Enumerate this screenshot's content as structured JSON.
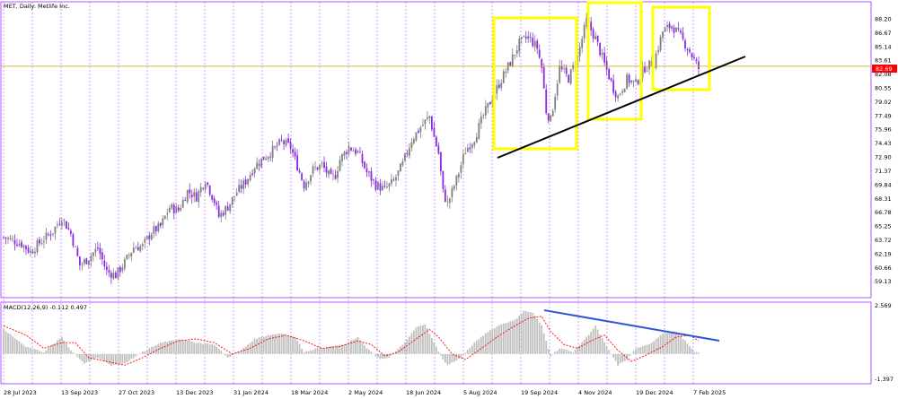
{
  "chart_data": {
    "type": "candlestick",
    "title": "MET, Daily:  Metlife Inc.",
    "price_axis": {
      "ylim": [
        58.4,
        88.9
      ],
      "tick_labels": [
        "88.20",
        "86.67",
        "85.14",
        "83.61",
        "82.08",
        "80.55",
        "79.02",
        "77.49",
        "75.96",
        "74.43",
        "72.90",
        "71.37",
        "69.84",
        "68.31",
        "66.78",
        "65.25",
        "63.72",
        "62.19",
        "60.66",
        "59.13"
      ]
    },
    "current_price": {
      "label": "82.69",
      "value": 82.69,
      "color": "#ff0000"
    },
    "horizontal_line": {
      "value": 82.95,
      "color": "#c8a400"
    },
    "date_labels": [
      "28 Jul 2023",
      "13 Sep 2023",
      "27 Oct 2023",
      "13 Dec 2023",
      "31 Jan 2024",
      "18 Mar 2024",
      "2 May 2024",
      "18 Jun 2024",
      "5 Aug 2024",
      "19 Sep 2024",
      "4 Nov 2024",
      "19 Dec 2024",
      "7 Feb 2025"
    ],
    "price_series": {
      "bull_color": "#7f7f7f",
      "bear_color": "#8a2be2",
      "anchors": [
        [
          0,
          64.0
        ],
        [
          8,
          63.3
        ],
        [
          12,
          62.4
        ],
        [
          16,
          63.4
        ],
        [
          22,
          64.7
        ],
        [
          26,
          66.2
        ],
        [
          30,
          64.4
        ],
        [
          34,
          60.9
        ],
        [
          37,
          61.5
        ],
        [
          42,
          62.8
        ],
        [
          46,
          60.2
        ],
        [
          50,
          59.8
        ],
        [
          54,
          61.2
        ],
        [
          58,
          62.9
        ],
        [
          62,
          63.0
        ],
        [
          66,
          64.6
        ],
        [
          70,
          65.2
        ],
        [
          74,
          67.3
        ],
        [
          78,
          67.0
        ],
        [
          82,
          69.1
        ],
        [
          86,
          68.5
        ],
        [
          90,
          70.4
        ],
        [
          94,
          68.0
        ],
        [
          96,
          66.3
        ],
        [
          100,
          67.4
        ],
        [
          104,
          69.0
        ],
        [
          108,
          70.2
        ],
        [
          112,
          71.9
        ],
        [
          116,
          72.8
        ],
        [
          120,
          73.6
        ],
        [
          124,
          74.6
        ],
        [
          128,
          74.0
        ],
        [
          132,
          71.2
        ],
        [
          134,
          69.8
        ],
        [
          138,
          71.5
        ],
        [
          142,
          72.0
        ],
        [
          146,
          70.5
        ],
        [
          148,
          70.9
        ],
        [
          150,
          72.6
        ],
        [
          154,
          74.0
        ],
        [
          158,
          73.4
        ],
        [
          162,
          71.2
        ],
        [
          166,
          69.8
        ],
        [
          170,
          69.3
        ],
        [
          174,
          70.2
        ],
        [
          178,
          72.1
        ],
        [
          182,
          74.8
        ],
        [
          186,
          76.2
        ],
        [
          190,
          77.4
        ],
        [
          192,
          75.1
        ],
        [
          194,
          73.3
        ],
        [
          196,
          69.0
        ],
        [
          198,
          67.7
        ],
        [
          202,
          70.4
        ],
        [
          206,
          73.6
        ],
        [
          210,
          75.0
        ],
        [
          214,
          77.5
        ],
        [
          218,
          79.5
        ],
        [
          222,
          81.5
        ],
        [
          226,
          83.4
        ],
        [
          230,
          85.5
        ],
        [
          234,
          86.2
        ],
        [
          238,
          85.0
        ],
        [
          240,
          82.8
        ],
        [
          242,
          78.0
        ],
        [
          244,
          77.0
        ],
        [
          248,
          82.8
        ],
        [
          252,
          81.6
        ],
        [
          256,
          84.0
        ],
        [
          260,
          88.0
        ],
        [
          264,
          86.0
        ],
        [
          268,
          83.2
        ],
        [
          272,
          80.5
        ],
        [
          274,
          79.6
        ],
        [
          278,
          81.5
        ],
        [
          282,
          81.0
        ],
        [
          286,
          82.8
        ],
        [
          290,
          83.4
        ],
        [
          294,
          86.8
        ],
        [
          298,
          87.5
        ],
        [
          302,
          86.2
        ],
        [
          306,
          84.6
        ],
        [
          310,
          82.7
        ]
      ],
      "macd_anchors": [
        [
          0,
          1.3
        ],
        [
          10,
          0.4
        ],
        [
          18,
          0.1
        ],
        [
          26,
          0.9
        ],
        [
          30,
          0.2
        ],
        [
          36,
          -0.5
        ],
        [
          42,
          -0.2
        ],
        [
          48,
          -0.6
        ],
        [
          54,
          -0.5
        ],
        [
          62,
          0.1
        ],
        [
          70,
          0.6
        ],
        [
          78,
          0.8
        ],
        [
          86,
          0.6
        ],
        [
          94,
          0.5
        ],
        [
          100,
          -0.2
        ],
        [
          106,
          0.2
        ],
        [
          112,
          0.8
        ],
        [
          118,
          1.0
        ],
        [
          124,
          1.1
        ],
        [
          130,
          0.9
        ],
        [
          134,
          0.1
        ],
        [
          140,
          0.3
        ],
        [
          146,
          0.4
        ],
        [
          152,
          0.5
        ],
        [
          158,
          0.9
        ],
        [
          162,
          0.3
        ],
        [
          168,
          -0.3
        ],
        [
          172,
          -0.2
        ],
        [
          178,
          0.5
        ],
        [
          184,
          1.4
        ],
        [
          188,
          1.6
        ],
        [
          192,
          0.6
        ],
        [
          196,
          -0.3
        ],
        [
          198,
          -0.6
        ],
        [
          204,
          -0.2
        ],
        [
          210,
          0.6
        ],
        [
          216,
          1.2
        ],
        [
          222,
          1.6
        ],
        [
          228,
          1.8
        ],
        [
          232,
          2.3
        ],
        [
          236,
          2.2
        ],
        [
          240,
          1.5
        ],
        [
          244,
          -0.1
        ],
        [
          248,
          0.3
        ],
        [
          254,
          0.1
        ],
        [
          260,
          0.9
        ],
        [
          264,
          1.5
        ],
        [
          268,
          0.6
        ],
        [
          274,
          -0.6
        ],
        [
          278,
          -0.3
        ],
        [
          282,
          0.3
        ],
        [
          288,
          0.5
        ],
        [
          294,
          1.1
        ],
        [
          300,
          1.2
        ],
        [
          304,
          0.7
        ],
        [
          308,
          0.1
        ]
      ],
      "signal_anchors": [
        [
          0,
          1.5
        ],
        [
          10,
          1.0
        ],
        [
          18,
          0.3
        ],
        [
          26,
          0.6
        ],
        [
          32,
          0.6
        ],
        [
          38,
          -0.2
        ],
        [
          46,
          -0.4
        ],
        [
          54,
          -0.6
        ],
        [
          62,
          -0.2
        ],
        [
          70,
          0.3
        ],
        [
          78,
          0.7
        ],
        [
          86,
          0.8
        ],
        [
          94,
          0.6
        ],
        [
          102,
          0.0
        ],
        [
          110,
          0.3
        ],
        [
          118,
          0.8
        ],
        [
          126,
          1.0
        ],
        [
          134,
          0.7
        ],
        [
          142,
          0.3
        ],
        [
          150,
          0.4
        ],
        [
          158,
          0.7
        ],
        [
          164,
          0.5
        ],
        [
          170,
          -0.1
        ],
        [
          176,
          0.1
        ],
        [
          184,
          0.8
        ],
        [
          190,
          1.3
        ],
        [
          194,
          0.9
        ],
        [
          200,
          0.0
        ],
        [
          206,
          -0.3
        ],
        [
          212,
          0.2
        ],
        [
          220,
          0.9
        ],
        [
          228,
          1.5
        ],
        [
          234,
          1.9
        ],
        [
          240,
          2.0
        ],
        [
          244,
          1.2
        ],
        [
          250,
          0.5
        ],
        [
          256,
          0.3
        ],
        [
          262,
          0.7
        ],
        [
          268,
          1.0
        ],
        [
          274,
          0.2
        ],
        [
          280,
          -0.4
        ],
        [
          286,
          -0.1
        ],
        [
          294,
          0.4
        ],
        [
          300,
          0.9
        ],
        [
          306,
          1.0
        ],
        [
          310,
          0.7
        ]
      ]
    },
    "macd_panel": {
      "title": "MACD(12,26,9) -0.112 0.497",
      "ylim": [
        -1.397,
        2.569
      ],
      "tick_labels": [
        "2.569",
        "-1.397"
      ],
      "histogram_color": "#c0c0c0",
      "signal_color": "#ff0000"
    },
    "annotations": {
      "boxes_color": "#ffff00",
      "trendline_color": "#000000",
      "macd_trendline_color": "#2f56d8"
    }
  }
}
